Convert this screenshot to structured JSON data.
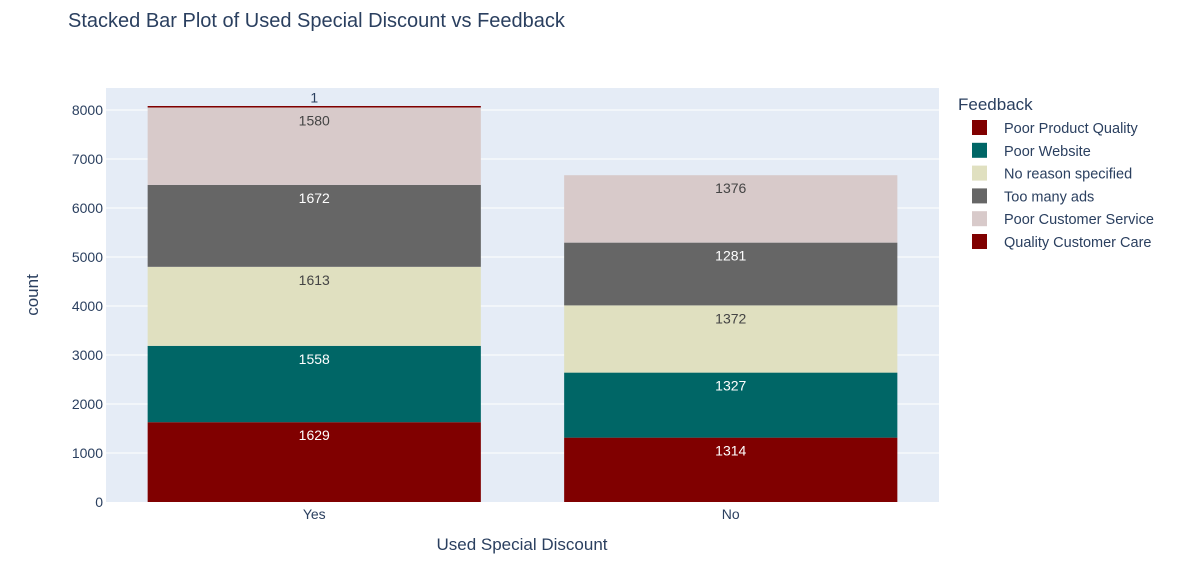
{
  "chart_data": {
    "type": "bar",
    "stacked": true,
    "title": "Stacked Bar Plot of Used Special Discount vs Feedback",
    "xlabel": "Used Special Discount",
    "ylabel": "count",
    "categories": [
      "Yes",
      "No"
    ],
    "ylim": [
      0,
      8450
    ],
    "yticks": [
      0,
      1000,
      2000,
      3000,
      4000,
      5000,
      6000,
      7000,
      8000
    ],
    "grid": true,
    "legend_title": "Feedback",
    "legend_position": "right",
    "plot_background": "#e5ecf6",
    "series": [
      {
        "name": "Quality Customer Care",
        "color": "#800000",
        "label_color": "#ffffff",
        "values": [
          1629,
          1314
        ]
      },
      {
        "name": "Poor Website",
        "color": "#006666",
        "label_color": "#ffffff",
        "values": [
          1558,
          1327
        ]
      },
      {
        "name": "No reason specified",
        "color": "#e0e0c0",
        "label_color": "#444444",
        "values": [
          1613,
          1372
        ]
      },
      {
        "name": "Too many ads",
        "color": "#666666",
        "label_color": "#ffffff",
        "values": [
          1672,
          1281
        ]
      },
      {
        "name": "Poor Customer Service",
        "color": "#d8caca",
        "label_color": "#444444",
        "values": [
          1580,
          1376
        ]
      },
      {
        "name": "Poor Product Quality",
        "color": "#800000",
        "label_color": "#444444",
        "values": [
          1,
          null
        ]
      }
    ],
    "legend_order": [
      "Poor Product Quality",
      "Poor Website",
      "No reason specified",
      "Too many ads",
      "Poor Customer Service",
      "Quality Customer Care"
    ]
  }
}
